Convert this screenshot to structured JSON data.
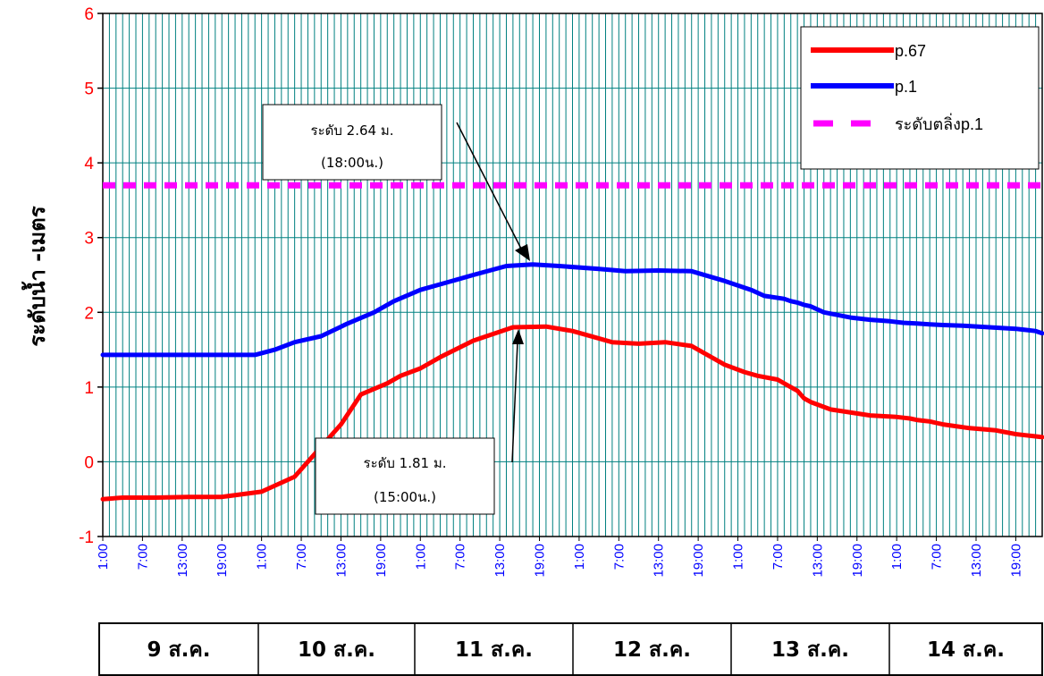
{
  "chart_data": {
    "type": "line",
    "ylabel": "ระดับน้ำ -เมตร",
    "ylim": [
      -1,
      6
    ],
    "yticks": [
      "-1",
      "0",
      "1",
      "2",
      "3",
      "4",
      "5",
      "6"
    ],
    "x_ticks": [
      "1:00",
      "7:00",
      "13:00",
      "19:00",
      "1:00",
      "7:00",
      "13:00",
      "19:00",
      "1:00",
      "7:00",
      "13:00",
      "19:00",
      "1:00",
      "7:00",
      "13:00",
      "19:00",
      "1:00",
      "7:00",
      "13:00",
      "19:00",
      "1:00",
      "7:00",
      "13:00",
      "19:00"
    ],
    "x_hours_range": [
      1,
      143
    ],
    "days": [
      "9 ส.ค.",
      "10 ส.ค.",
      "11 ส.ค.",
      "12 ส.ค.",
      "13 ส.ค.",
      "14 ส.ค."
    ],
    "grid": true,
    "legend_position": "top-right",
    "series": [
      {
        "name": "p.67",
        "color": "#ff0000",
        "x": [
          1,
          4,
          9,
          14,
          19,
          25,
          30,
          34,
          37,
          40,
          44,
          46,
          49,
          52,
          57,
          63,
          68,
          72,
          78,
          82,
          86,
          90,
          95,
          98,
          100,
          103,
          105,
          106,
          107,
          108,
          111,
          117,
          121,
          123,
          124,
          125,
          126,
          127,
          128,
          132,
          136,
          139,
          142,
          143
        ],
        "y": [
          -0.5,
          -0.48,
          -0.48,
          -0.47,
          -0.47,
          -0.4,
          -0.2,
          0.2,
          0.5,
          0.9,
          1.05,
          1.15,
          1.25,
          1.4,
          1.62,
          1.8,
          1.81,
          1.75,
          1.6,
          1.58,
          1.6,
          1.55,
          1.3,
          1.2,
          1.15,
          1.1,
          1.0,
          0.95,
          0.85,
          0.8,
          0.7,
          0.62,
          0.6,
          0.58,
          0.56,
          0.55,
          0.54,
          0.52,
          0.5,
          0.45,
          0.42,
          0.37,
          0.34,
          0.33
        ]
      },
      {
        "name": "p.1",
        "color": "#0000ff",
        "x": [
          1,
          5,
          10,
          15,
          20,
          24,
          27,
          30,
          34,
          38,
          42,
          45,
          49,
          53,
          57,
          62,
          66,
          70,
          76,
          80,
          85,
          90,
          95,
          99,
          101,
          104,
          105,
          106,
          107,
          108,
          110,
          114,
          117,
          120,
          122,
          124,
          126,
          128,
          131,
          135,
          139,
          142,
          143
        ],
        "y": [
          1.43,
          1.43,
          1.43,
          1.43,
          1.43,
          1.43,
          1.5,
          1.6,
          1.68,
          1.85,
          2.0,
          2.15,
          2.3,
          2.4,
          2.5,
          2.62,
          2.64,
          2.62,
          2.58,
          2.55,
          2.56,
          2.55,
          2.42,
          2.3,
          2.22,
          2.18,
          2.15,
          2.13,
          2.1,
          2.08,
          2.0,
          1.93,
          1.9,
          1.88,
          1.86,
          1.85,
          1.84,
          1.83,
          1.82,
          1.8,
          1.78,
          1.75,
          1.72
        ]
      },
      {
        "name": "ระดับตลิ่งp.1",
        "color": "#ff00ff",
        "dashed": true,
        "x": [
          1,
          143
        ],
        "y": [
          3.7,
          3.7
        ]
      }
    ],
    "annotations": [
      {
        "line1": "ระดับ 2.64 ม.",
        "line2": "(18:00น.)"
      },
      {
        "line1": "ระดับ 1.81 ม.",
        "line2": "(15:00น.)"
      }
    ]
  }
}
